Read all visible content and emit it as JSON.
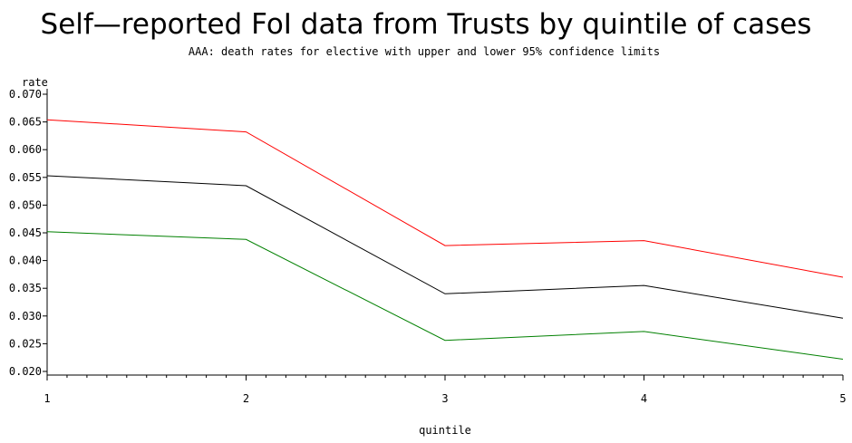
{
  "chart_data": {
    "type": "line",
    "title": "Self—reported FoI data from Trusts by quintile of cases",
    "subtitle": "AAA: death rates for elective with upper and lower 95% confidence limits",
    "xlabel": "quintile",
    "ylabel": "rate",
    "x": [
      1,
      2,
      3,
      4,
      5
    ],
    "xlim": [
      1,
      5
    ],
    "x_ticks": [
      "1",
      "2",
      "3",
      "4",
      "5"
    ],
    "ylim": [
      0.02,
      0.07
    ],
    "y_ticks": [
      "0.020",
      "0.025",
      "0.030",
      "0.035",
      "0.040",
      "0.045",
      "0.050",
      "0.055",
      "0.060",
      "0.065",
      "0.070"
    ],
    "grid": false,
    "legend": "none",
    "series": [
      {
        "color": "#ff0000",
        "values": [
          0.0654,
          0.0632,
          0.0427,
          0.0436,
          0.037
        ]
      },
      {
        "color": "#000000",
        "values": [
          0.0553,
          0.0535,
          0.034,
          0.0355,
          0.0296
        ]
      },
      {
        "color": "#008000",
        "values": [
          0.0452,
          0.0438,
          0.0256,
          0.0272,
          0.0222
        ]
      }
    ]
  }
}
